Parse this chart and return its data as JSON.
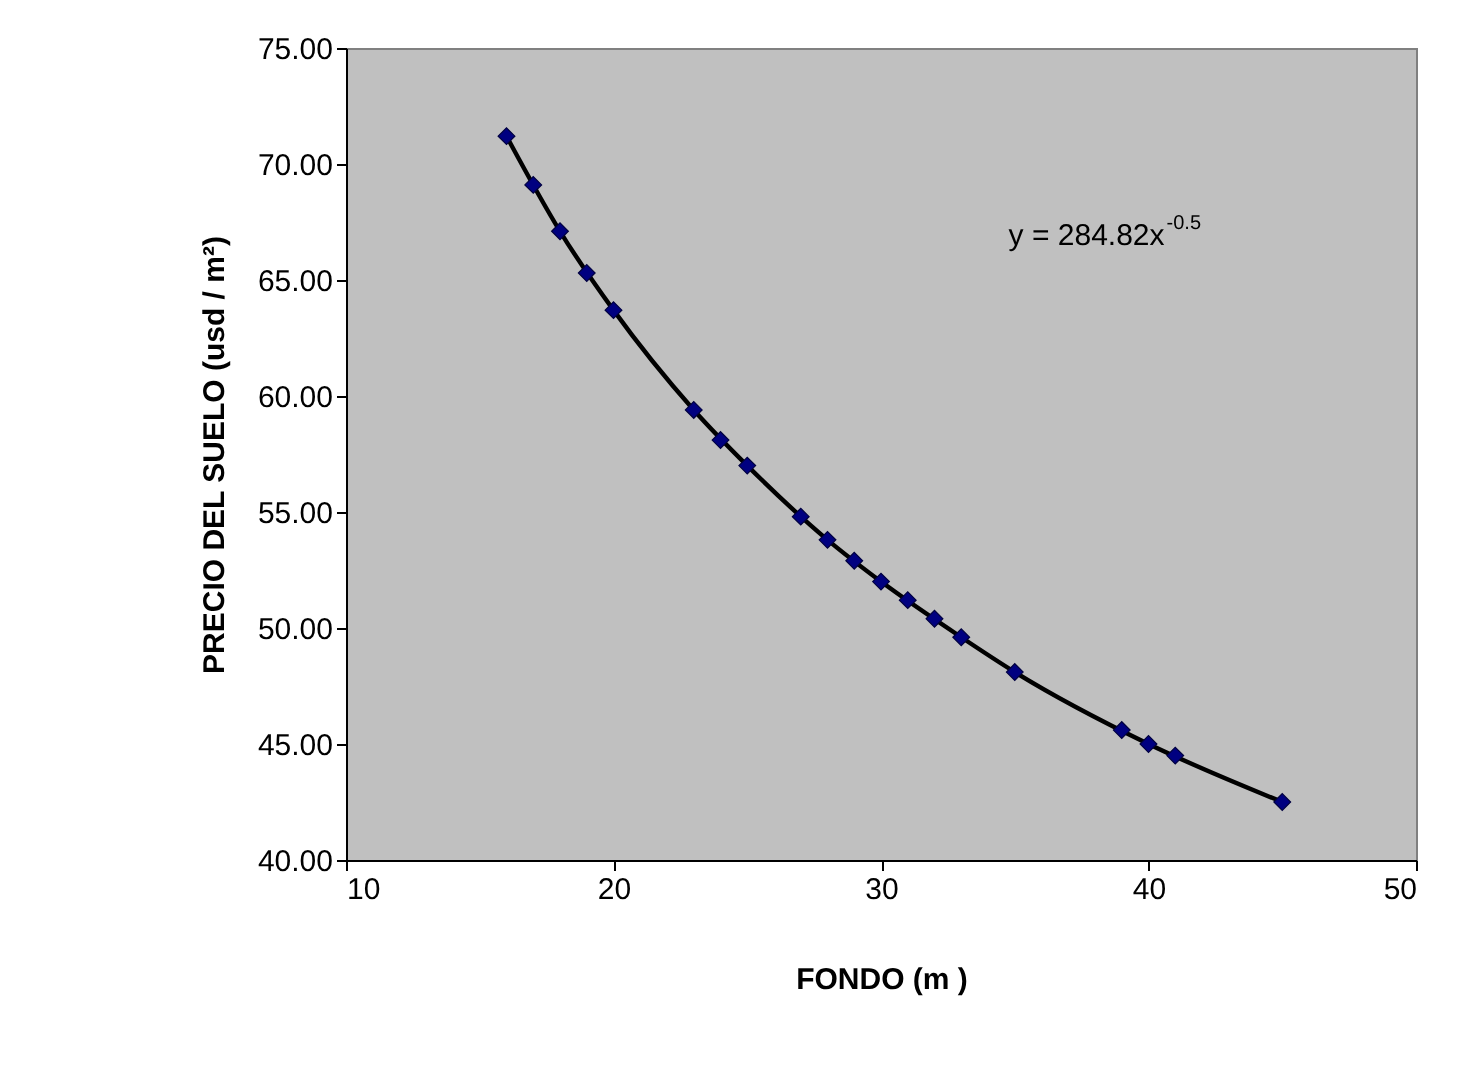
{
  "chart_data": {
    "type": "scatter",
    "xlabel": "FONDO (m )",
    "ylabel": "PRECIO DEL SUELO (usd / m²)",
    "xlim": [
      10,
      50
    ],
    "xticks": [
      10,
      20,
      30,
      40,
      50
    ],
    "ylim": [
      40,
      75
    ],
    "yticks": [
      {
        "value": 40,
        "label": "40.00"
      },
      {
        "value": 45,
        "label": "45.00"
      },
      {
        "value": 50,
        "label": "50.00"
      },
      {
        "value": 55,
        "label": "55.00"
      },
      {
        "value": 60,
        "label": "60.00"
      },
      {
        "value": 65,
        "label": "65.00"
      },
      {
        "value": 70,
        "label": "70.00"
      },
      {
        "value": 75,
        "label": "75.00"
      }
    ],
    "grid": false,
    "line_style": "solid",
    "annotations": [
      "y = 284.82x$^{-0.5}$"
    ],
    "series": [
      {
        "marker": "diamond",
        "color": "#000080",
        "x": [
          16,
          17,
          18,
          19,
          20,
          23,
          24,
          25,
          27,
          28,
          29,
          30,
          31,
          32,
          33,
          35,
          39,
          40,
          41,
          45
        ],
        "values": [
          71.2,
          69.1,
          67.1,
          65.3,
          63.7,
          59.4,
          58.1,
          57.0,
          54.8,
          53.8,
          52.9,
          52.0,
          51.2,
          50.4,
          49.6,
          48.1,
          45.6,
          45.0,
          44.5,
          42.5
        ]
      },
      {
        "type": "line",
        "color": "#000000",
        "x": [
          16,
          18,
          20,
          23,
          25,
          28,
          30,
          33,
          35,
          40,
          45
        ],
        "values": [
          71.2,
          67.1,
          63.7,
          59.4,
          57.0,
          53.8,
          52.0,
          49.6,
          48.1,
          45.0,
          42.5
        ]
      }
    ]
  }
}
